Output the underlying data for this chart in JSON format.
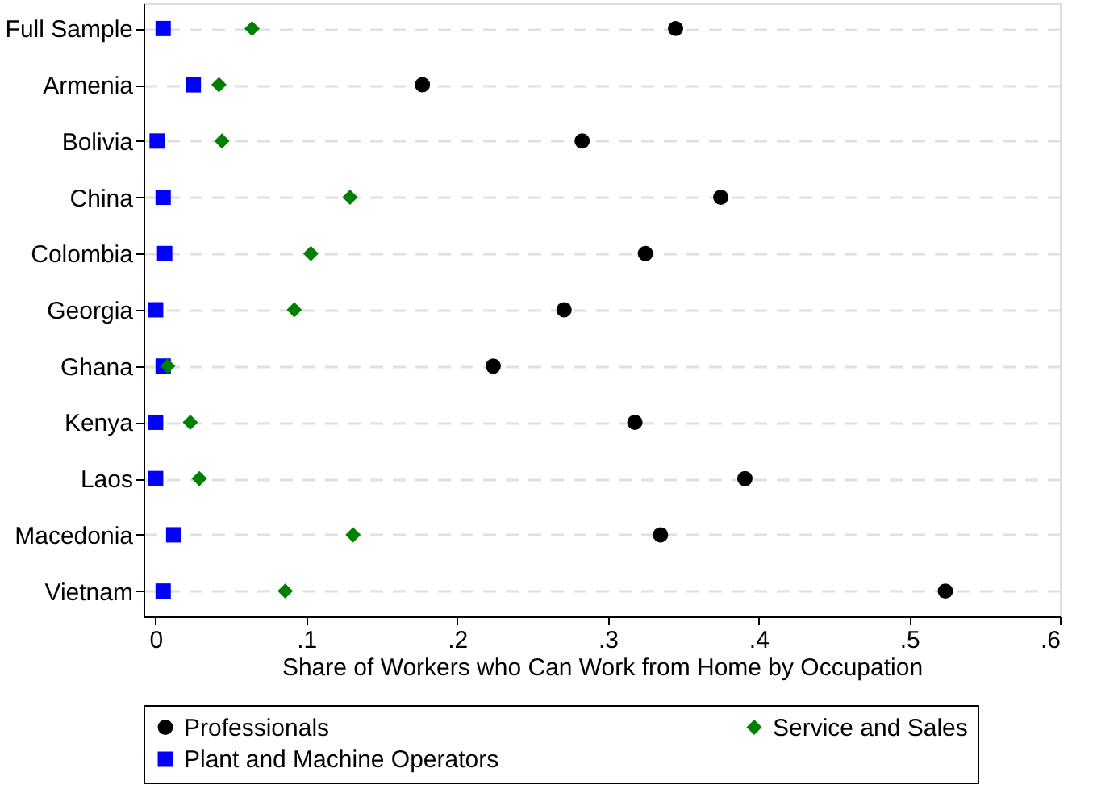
{
  "chart_data": {
    "type": "scatter",
    "orientation": "horizontal",
    "xlabel": "Share of Workers who Can Work from Home by Occupation",
    "categories": [
      "Full Sample",
      "Armenia",
      "Bolivia",
      "China",
      "Colombia",
      "Georgia",
      "Ghana",
      "Kenya",
      "Laos",
      "Macedonia",
      "Vietnam"
    ],
    "series": [
      {
        "name": "Professionals",
        "color": "#000000",
        "marker": "circle",
        "values": [
          0.345,
          0.177,
          0.283,
          0.375,
          0.325,
          0.271,
          0.224,
          0.318,
          0.391,
          0.335,
          0.524
        ]
      },
      {
        "name": "Service and Sales",
        "color": "#008000",
        "marker": "diamond",
        "values": [
          0.064,
          0.042,
          0.044,
          0.129,
          0.103,
          0.092,
          0.008,
          0.023,
          0.029,
          0.131,
          0.086
        ]
      },
      {
        "name": "Plant and Machine Operators",
        "color": "#0000ff",
        "marker": "square",
        "values": [
          0.005,
          0.025,
          0.001,
          0.005,
          0.006,
          0.0,
          0.005,
          0.0,
          0.0,
          0.012,
          0.005
        ]
      }
    ],
    "xlim": [
      -0.008,
      0.6
    ],
    "xticks": [
      {
        "value": 0,
        "label": "0"
      },
      {
        "value": 0.1,
        "label": ".1"
      },
      {
        "value": 0.2,
        "label": ".2"
      },
      {
        "value": 0.3,
        "label": ".3"
      },
      {
        "value": 0.4,
        "label": ".4"
      },
      {
        "value": 0.5,
        "label": ".5"
      },
      {
        "value": 0.6,
        "label": ".6"
      }
    ],
    "grid": "y",
    "legend": "bottom"
  }
}
